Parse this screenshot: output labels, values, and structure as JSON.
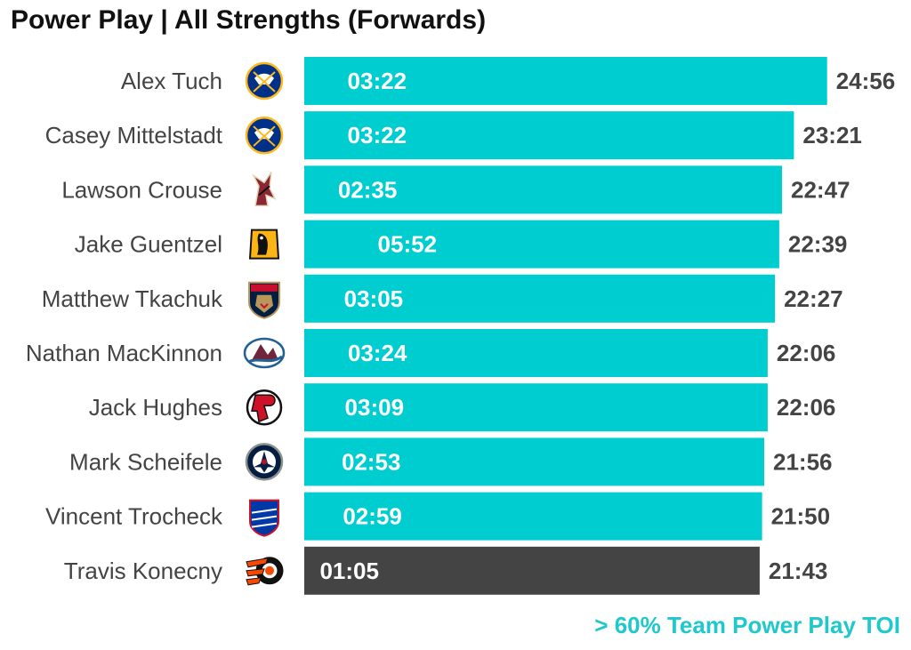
{
  "header": {
    "title": "Power Play | All Strengths (Forwards)"
  },
  "footnote": "> 60% Team Power Play TOI",
  "colors": {
    "highlight": "#00cdd0",
    "other": "#444444",
    "footnote": "#1ec8cc"
  },
  "chart_data": {
    "type": "bar",
    "orientation": "horizontal",
    "title": "Power Play | All Strengths (Forwards)",
    "xlabel": "",
    "ylabel": "",
    "grid": false,
    "legend": "none",
    "categories": [
      "Alex Tuch",
      "Casey Mittelstadt",
      "Lawson Crouse",
      "Jake Guentzel",
      "Matthew Tkachuk",
      "Nathan MacKinnon",
      "Jack Hughes",
      "Mark Scheifele",
      "Vincent Trocheck",
      "Travis Konecny"
    ],
    "series": [
      {
        "values": [
          "24:56",
          "23:21",
          "22:47",
          "22:39",
          "22:27",
          "22:06",
          "22:06",
          "21:56",
          "21:50",
          "21:43"
        ]
      },
      {
        "values": [
          "03:22",
          "03:22",
          "02:35",
          "05:52",
          "03:05",
          "03:24",
          "03:09",
          "02:53",
          "02:59",
          "01:05"
        ]
      }
    ],
    "highlight": [
      true,
      true,
      true,
      true,
      true,
      true,
      true,
      true,
      true,
      false
    ],
    "teams": [
      "buffalo-sabres-logo",
      "buffalo-sabres-logo",
      "arizona-coyotes-logo",
      "pittsburgh-penguins-logo",
      "florida-panthers-logo",
      "colorado-avalanche-logo",
      "new-jersey-devils-logo",
      "winnipeg-jets-logo",
      "new-york-rangers-logo",
      "philadelphia-flyers-logo"
    ]
  }
}
